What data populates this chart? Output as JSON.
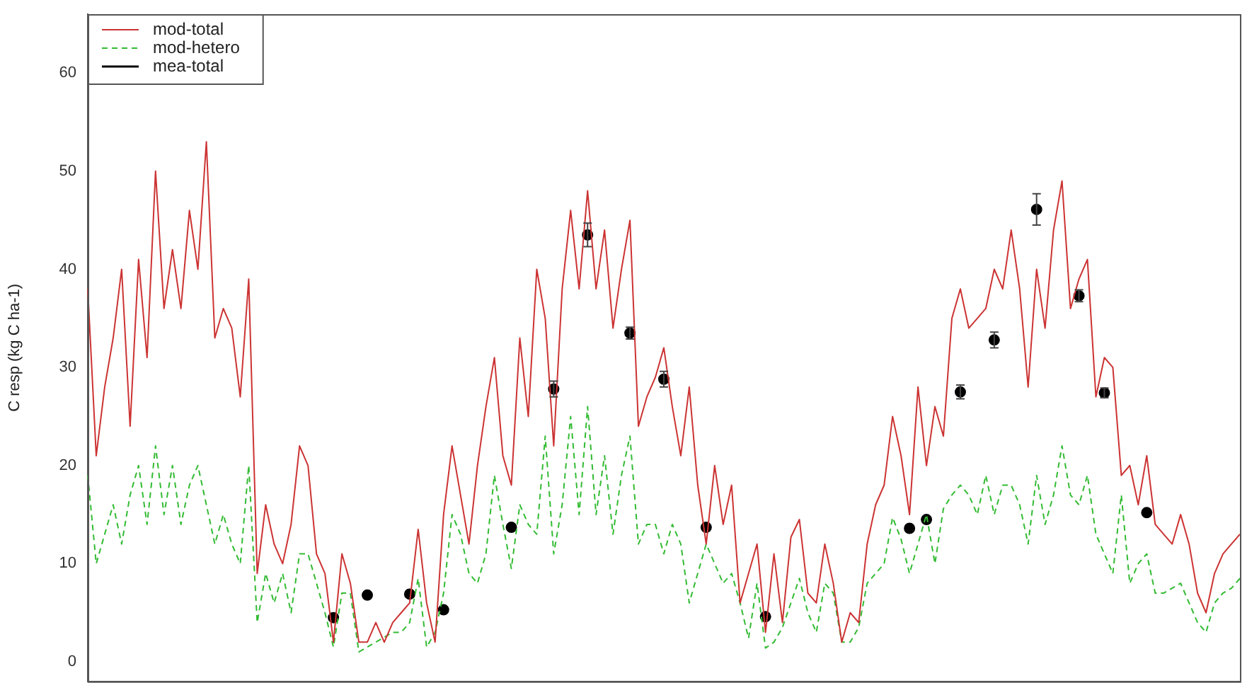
{
  "chart_data": {
    "type": "line",
    "ylabel": "C resp (kg C ha-1)",
    "ylim": [
      -2,
      66
    ],
    "yticks": [
      0,
      10,
      20,
      30,
      40,
      50,
      60
    ],
    "grid": false,
    "legend": "top left",
    "tick_labels": "y",
    "categories": [
      null,
      null,
      null,
      null,
      null,
      null,
      null,
      null,
      null,
      null,
      null,
      null,
      null,
      null,
      null,
      null,
      null,
      null,
      null,
      null,
      null,
      null,
      null,
      null,
      null,
      null,
      null,
      null,
      null,
      null,
      null,
      null,
      null,
      null,
      null,
      null,
      null,
      null,
      null,
      null,
      null,
      null,
      null,
      null,
      null,
      null,
      null,
      null,
      null,
      null,
      null,
      null,
      null,
      null,
      null,
      null,
      null,
      null,
      null,
      null,
      null,
      null,
      null,
      null,
      null,
      null,
      null,
      null,
      null,
      null,
      null,
      null,
      null,
      null,
      null,
      null,
      null,
      null,
      null,
      null,
      null,
      null,
      null,
      null,
      null,
      null,
      null,
      null,
      null,
      null,
      null,
      null,
      null,
      null,
      null,
      null,
      null,
      null,
      null,
      null,
      null,
      null,
      null,
      null,
      null,
      null,
      null,
      null,
      null,
      null,
      null,
      null,
      null,
      null,
      null,
      null,
      null,
      null,
      null,
      null,
      null,
      null,
      null,
      null,
      null,
      null,
      null,
      null,
      null,
      null,
      null,
      null,
      null,
      null,
      null,
      null,
      null
    ],
    "series": [
      {
        "name": "mod-total",
        "color": "#cc3333",
        "line_style": "solid",
        "values": [
          38,
          21,
          28,
          33,
          40,
          24,
          41,
          31,
          50,
          36,
          42,
          36,
          46,
          40,
          53,
          33,
          36,
          34,
          27,
          39,
          9,
          16,
          12,
          10,
          14,
          22,
          20,
          11,
          9,
          2,
          11,
          8,
          2,
          2,
          4,
          2,
          4,
          5,
          6,
          13.5,
          6,
          2,
          15,
          22,
          17,
          12,
          20,
          26,
          31,
          21,
          18,
          33,
          25,
          40,
          35,
          22,
          38,
          46,
          38,
          48,
          38,
          44,
          34,
          40,
          45,
          24,
          27,
          29,
          32,
          26,
          21,
          28,
          18,
          12,
          20,
          14,
          18,
          6,
          9,
          12,
          3,
          11,
          4,
          12.7,
          14.5,
          7,
          6,
          12,
          8,
          2,
          5,
          4,
          12,
          16,
          18,
          25,
          21,
          15,
          28,
          20,
          26,
          23,
          35,
          38,
          34,
          35,
          36,
          40,
          38,
          44,
          38,
          28,
          40,
          34,
          44,
          49,
          36,
          39,
          41,
          27,
          31,
          30,
          19,
          20,
          16,
          21,
          14,
          13,
          12,
          15,
          12,
          7,
          5,
          9,
          11,
          12,
          13
        ]
      },
      {
        "name": "mod-hetero",
        "color": "#33bb33",
        "line_style": "dashed",
        "values": [
          19,
          10,
          13,
          16,
          12,
          17,
          20,
          14,
          22,
          15,
          20,
          14,
          18,
          20,
          16,
          12,
          15,
          12,
          10,
          20,
          4,
          9,
          6,
          9,
          5,
          11,
          11,
          8,
          5,
          1.5,
          7,
          7,
          1,
          1.5,
          2,
          2.5,
          3,
          3,
          4,
          8.5,
          1.5,
          3,
          7,
          15,
          13,
          9,
          8,
          11,
          19,
          14,
          9.5,
          16,
          14,
          13,
          23,
          11,
          16,
          25,
          15,
          26,
          15,
          21,
          13,
          19,
          23,
          12,
          14,
          14,
          11,
          14,
          12,
          6,
          9,
          12,
          10,
          8,
          9,
          6,
          2.4,
          8,
          1.4,
          2,
          3.5,
          6,
          8.5,
          5,
          3,
          8,
          7,
          2,
          2,
          3.5,
          8,
          9,
          10,
          14.7,
          12.5,
          9,
          12,
          15,
          10,
          15.6,
          17,
          18,
          17,
          15,
          19,
          15,
          18,
          18,
          16,
          12,
          19,
          14,
          17,
          22,
          17,
          16,
          19,
          13,
          11,
          9,
          17,
          8,
          10,
          11,
          7,
          7,
          7.5,
          8,
          6,
          4,
          3,
          6,
          7,
          7.5,
          8.5
        ]
      },
      {
        "name": "mea-total",
        "type": "scatter",
        "color": "#000000",
        "marker": "circle",
        "values": [
          null,
          null,
          null,
          null,
          null,
          null,
          null,
          null,
          null,
          null,
          null,
          null,
          null,
          null,
          null,
          null,
          null,
          null,
          null,
          null,
          null,
          null,
          null,
          null,
          null,
          null,
          null,
          null,
          null,
          4.5,
          null,
          null,
          null,
          6.8,
          null,
          null,
          null,
          null,
          6.9,
          null,
          null,
          null,
          5.3,
          null,
          null,
          null,
          null,
          null,
          null,
          null,
          13.7,
          null,
          null,
          null,
          null,
          27.8,
          null,
          null,
          null,
          43.5,
          null,
          null,
          null,
          null,
          33.5,
          null,
          null,
          null,
          28.8,
          null,
          null,
          null,
          null,
          13.7,
          null,
          null,
          null,
          null,
          null,
          null,
          4.6,
          null,
          null,
          null,
          null,
          null,
          null,
          null,
          null,
          null,
          null,
          null,
          null,
          null,
          null,
          null,
          null,
          13.6,
          null,
          14.5,
          null,
          null,
          null,
          27.5,
          null,
          null,
          null,
          32.8,
          null,
          null,
          null,
          null,
          46.1,
          null,
          null,
          null,
          null,
          37.3,
          null,
          null,
          27.4,
          null,
          null,
          null,
          null,
          15.2,
          null,
          null,
          null,
          null,
          null,
          null,
          null,
          null,
          null,
          null,
          null
        ],
        "errors": [
          null,
          null,
          null,
          null,
          null,
          null,
          null,
          null,
          null,
          null,
          null,
          null,
          null,
          null,
          null,
          null,
          null,
          null,
          null,
          null,
          null,
          null,
          null,
          null,
          null,
          null,
          null,
          null,
          null,
          null,
          null,
          null,
          null,
          null,
          null,
          null,
          null,
          null,
          null,
          null,
          null,
          null,
          null,
          null,
          null,
          null,
          null,
          null,
          null,
          null,
          null,
          null,
          null,
          null,
          null,
          0.8,
          null,
          null,
          null,
          1.2,
          null,
          null,
          null,
          null,
          0.6,
          null,
          null,
          null,
          0.8,
          null,
          null,
          null,
          null,
          null,
          null,
          null,
          null,
          null,
          null,
          null,
          null,
          null,
          null,
          null,
          null,
          null,
          null,
          null,
          null,
          null,
          null,
          null,
          null,
          null,
          null,
          null,
          null,
          null,
          null,
          null,
          null,
          null,
          null,
          0.7,
          null,
          null,
          null,
          0.8,
          null,
          null,
          null,
          null,
          1.6,
          null,
          null,
          null,
          null,
          0.6,
          null,
          null,
          0.5,
          null,
          null,
          null,
          null,
          null,
          null,
          null,
          null,
          null,
          null,
          null,
          null,
          null,
          null,
          null,
          null
        ]
      }
    ]
  }
}
